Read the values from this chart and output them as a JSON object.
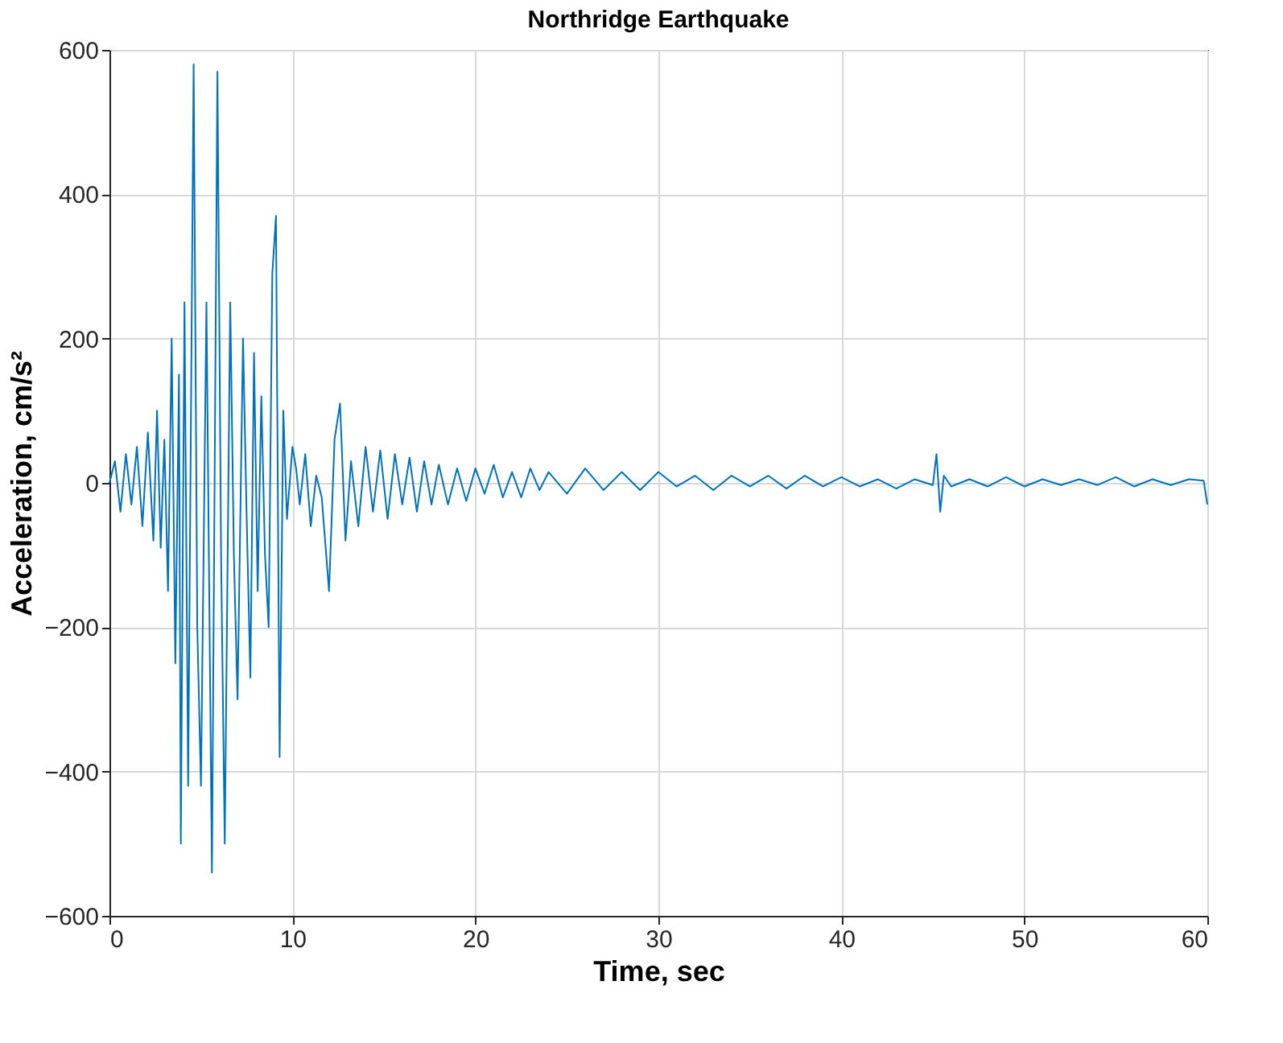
{
  "chart_data": {
    "type": "line",
    "title": "Northridge Earthquake",
    "xlabel": "Time, sec",
    "ylabel": "Acceleration, cm/s²",
    "xlim": [
      0,
      60
    ],
    "xticks": [
      0,
      10,
      20,
      30,
      40,
      50,
      60
    ],
    "ylim": [
      -600,
      600
    ],
    "yticks": [
      -600,
      -400,
      -200,
      0,
      200,
      400,
      600
    ],
    "grid": true,
    "marker": "none",
    "line_style": "solid",
    "series": [
      {
        "color": "#0072bd",
        "x": [
          0,
          0.3,
          0.6,
          0.9,
          1.2,
          1.5,
          1.8,
          2.1,
          2.4,
          2.6,
          2.8,
          3.0,
          3.2,
          3.4,
          3.6,
          3.8,
          3.9,
          4.1,
          4.3,
          4.6,
          4.8,
          5.0,
          5.3,
          5.6,
          5.9,
          6.1,
          6.3,
          6.6,
          6.8,
          7.0,
          7.3,
          7.5,
          7.7,
          7.9,
          8.1,
          8.3,
          8.5,
          8.7,
          8.9,
          9.1,
          9.3,
          9.5,
          9.7,
          10.0,
          10.2,
          10.4,
          10.7,
          11.0,
          11.3,
          11.6,
          12.0,
          12.3,
          12.6,
          12.9,
          13.2,
          13.6,
          14.0,
          14.4,
          14.8,
          15.2,
          15.6,
          16.0,
          16.4,
          16.8,
          17.2,
          17.6,
          18.0,
          18.5,
          19.0,
          19.5,
          20.0,
          20.5,
          21.0,
          21.5,
          22.0,
          22.5,
          23.0,
          23.5,
          24.0,
          25.0,
          26.0,
          27.0,
          28.0,
          29.0,
          30.0,
          31.0,
          32.0,
          33.0,
          34.0,
          35.0,
          36.0,
          37.0,
          38.0,
          39.0,
          40.0,
          41.0,
          42.0,
          43.0,
          44.0,
          45.0,
          45.2,
          45.4,
          45.6,
          46.0,
          47.0,
          48.0,
          49.0,
          50.0,
          51.0,
          52.0,
          53.0,
          54.0,
          55.0,
          56.0,
          57.0,
          58.0,
          59.0,
          59.8,
          60.0
        ],
        "values": [
          0,
          30,
          -40,
          40,
          -30,
          50,
          -60,
          70,
          -80,
          100,
          -90,
          60,
          -150,
          200,
          -250,
          150,
          -500,
          250,
          -420,
          580,
          -200,
          -420,
          250,
          -540,
          570,
          -100,
          -500,
          250,
          -100,
          -300,
          200,
          -50,
          -270,
          180,
          -150,
          120,
          -100,
          -200,
          290,
          370,
          -380,
          100,
          -50,
          50,
          20,
          -30,
          40,
          -60,
          10,
          -20,
          -150,
          60,
          110,
          -80,
          30,
          -60,
          50,
          -40,
          45,
          -50,
          40,
          -30,
          35,
          -40,
          30,
          -30,
          25,
          -30,
          20,
          -25,
          20,
          -15,
          25,
          -20,
          15,
          -20,
          20,
          -10,
          15,
          -15,
          20,
          -10,
          15,
          -10,
          15,
          -5,
          10,
          -10,
          10,
          -5,
          10,
          -8,
          10,
          -5,
          8,
          -5,
          5,
          -8,
          5,
          -3,
          40,
          -40,
          10,
          -5,
          5,
          -5,
          8,
          -5,
          5,
          -3,
          5,
          -3,
          8,
          -5,
          5,
          -3,
          5,
          3,
          -30
        ]
      }
    ]
  }
}
